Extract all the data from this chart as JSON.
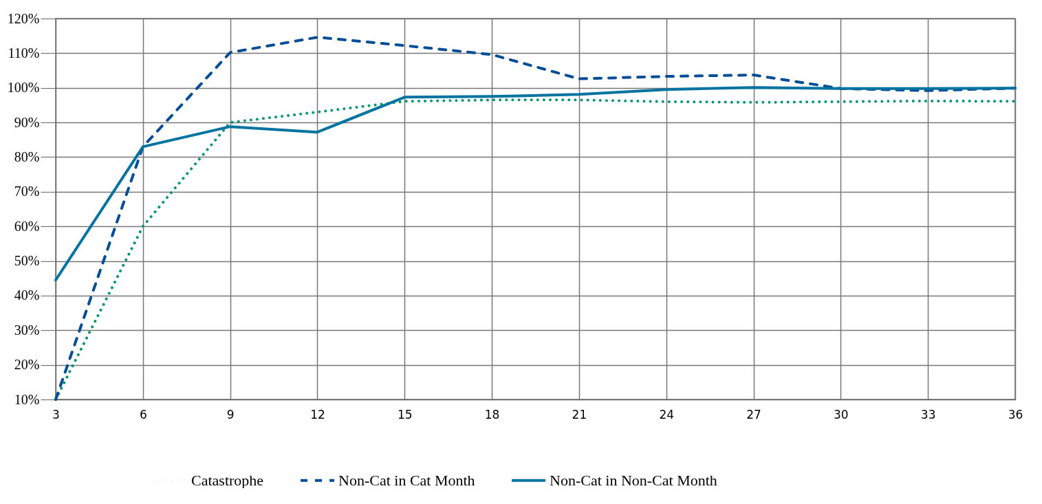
{
  "chart_data": {
    "type": "line",
    "x": [
      3,
      6,
      9,
      12,
      15,
      18,
      21,
      24,
      27,
      30,
      33,
      36
    ],
    "series": [
      {
        "name": "Catastrophe",
        "color": "#00966c",
        "line_style": "dotted",
        "values": [
          10,
          60,
          90,
          93,
          96.1,
          96.5,
          96.5,
          96,
          95.8,
          96,
          96.2,
          96.1
        ]
      },
      {
        "name": "Non-Cat in Cat Month",
        "color": "#004c97",
        "line_style": "dashed",
        "values": [
          10,
          83,
          110.2,
          114.6,
          112.2,
          109.6,
          102.6,
          103.3,
          103.7,
          99.8,
          99.2,
          99.9
        ]
      },
      {
        "name": "Non-Cat in Non-Cat Month",
        "color": "#0073a0",
        "line_style": "solid",
        "values": [
          44.5,
          83,
          88.8,
          87.2,
          97.3,
          97.5,
          98.1,
          99.5,
          100.1,
          99.8,
          99.8,
          99.9
        ]
      }
    ],
    "xlim": [
      3,
      36
    ],
    "xticks": [
      3,
      6,
      9,
      12,
      15,
      18,
      21,
      24,
      27,
      30,
      33,
      36
    ],
    "ylim": [
      10,
      120
    ],
    "yticks": [
      {
        "value": 10,
        "label": "10%"
      },
      {
        "value": 20,
        "label": "20%"
      },
      {
        "value": 30,
        "label": "30%"
      },
      {
        "value": 40,
        "label": "40%"
      },
      {
        "value": 50,
        "label": "50%"
      },
      {
        "value": 60,
        "label": "60%"
      },
      {
        "value": 70,
        "label": "70%"
      },
      {
        "value": 80,
        "label": "80%"
      },
      {
        "value": 90,
        "label": "90%"
      },
      {
        "value": 100,
        "label": "100%"
      },
      {
        "value": 110,
        "label": "110%"
      },
      {
        "value": 120,
        "label": "120%"
      }
    ],
    "grid": true,
    "legend": "bottom",
    "marker": "none"
  }
}
